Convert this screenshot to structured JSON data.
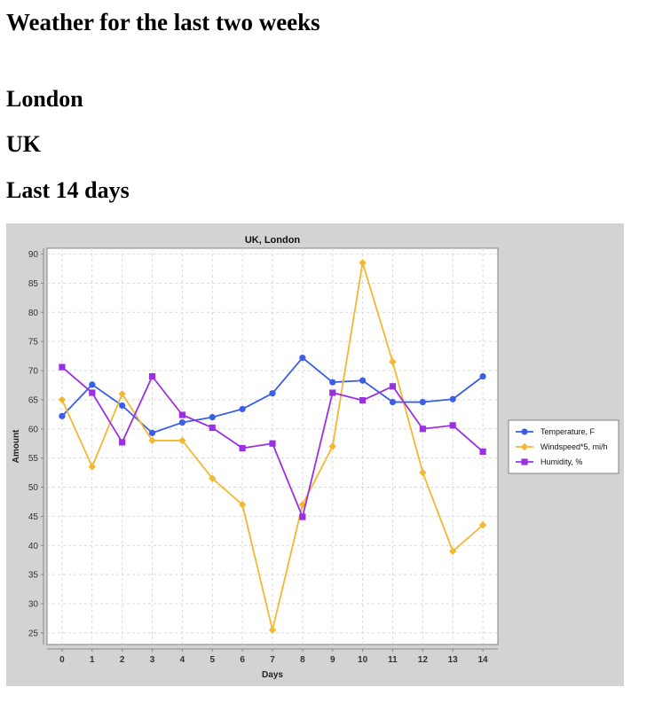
{
  "page": {
    "heading": "Weather for the last two weeks",
    "city": "London",
    "country": "UK",
    "range": "Last 14 days"
  },
  "chart_data": {
    "type": "line",
    "title": "UK, London",
    "xlabel": "Days",
    "ylabel": "Amount",
    "x": [
      0,
      1,
      2,
      3,
      4,
      5,
      6,
      7,
      8,
      9,
      10,
      11,
      12,
      13,
      14
    ],
    "xlim": [
      -0.5,
      14.5
    ],
    "ylim": [
      23,
      91
    ],
    "yticks": [
      25,
      30,
      35,
      40,
      45,
      50,
      55,
      60,
      65,
      70,
      75,
      80,
      85,
      90
    ],
    "grid": true,
    "legend_position": "right",
    "series": [
      {
        "name": "Temperature, F",
        "color": "#3a5ee8",
        "marker": "circle",
        "values": [
          62.2,
          67.6,
          64.0,
          59.3,
          61.1,
          62.0,
          63.4,
          66.1,
          72.2,
          68.0,
          68.3,
          64.6,
          64.6,
          65.1,
          69.0
        ]
      },
      {
        "name": "Windspeed*5, mi/h",
        "color": "#f3b731",
        "marker": "diamond",
        "values": [
          65.0,
          53.5,
          66.0,
          58.0,
          58.0,
          51.5,
          47.0,
          25.5,
          47.0,
          57.0,
          88.5,
          71.5,
          52.5,
          39.0,
          43.5
        ]
      },
      {
        "name": "Humidity, %",
        "color": "#9b30e3",
        "marker": "square",
        "values": [
          70.6,
          66.2,
          57.7,
          69.0,
          62.4,
          60.2,
          56.7,
          57.5,
          44.9,
          66.2,
          64.9,
          67.3,
          60.0,
          60.6,
          56.1
        ]
      }
    ]
  }
}
